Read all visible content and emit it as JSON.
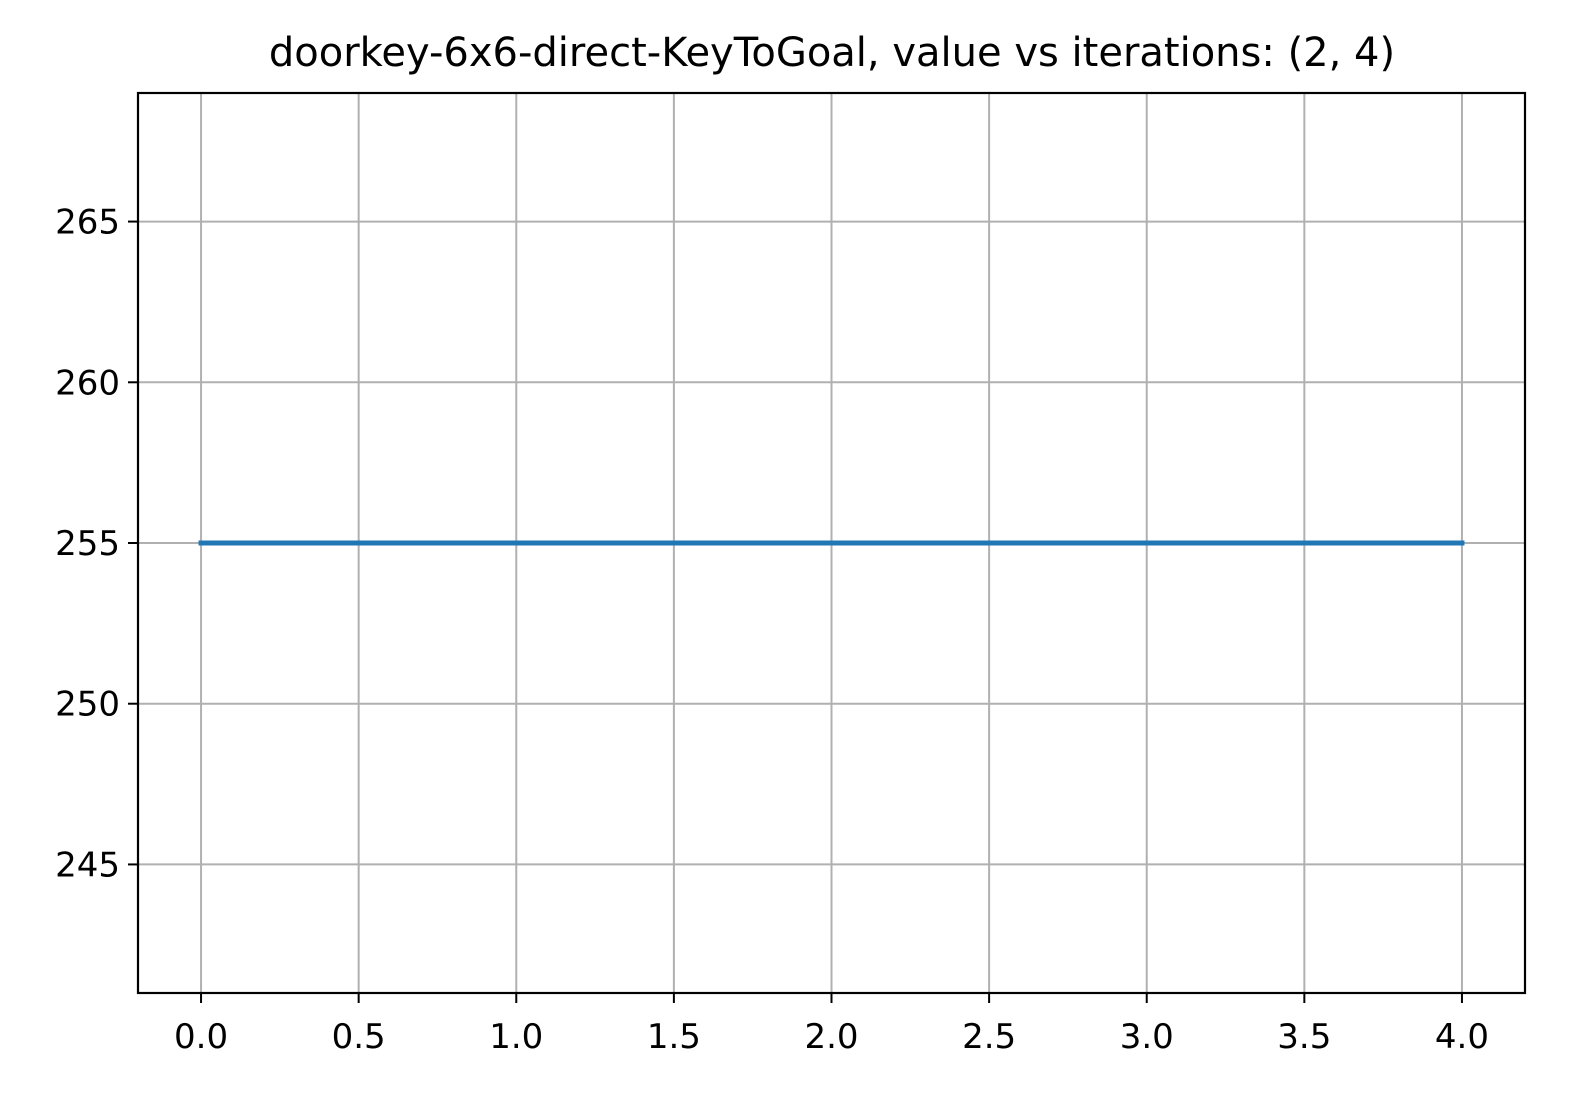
{
  "chart_data": {
    "type": "line",
    "title": "doorkey-6x6-direct-KeyToGoal, value vs iterations: (2, 4)",
    "xlabel": "",
    "ylabel": "",
    "xlim": [
      -0.2,
      4.2
    ],
    "ylim": [
      241,
      269
    ],
    "xticks": [
      0.0,
      0.5,
      1.0,
      1.5,
      2.0,
      2.5,
      3.0,
      3.5,
      4.0
    ],
    "xtick_labels": [
      "0.0",
      "0.5",
      "1.0",
      "1.5",
      "2.0",
      "2.5",
      "3.0",
      "3.5",
      "4.0"
    ],
    "yticks": [
      245,
      250,
      255,
      260,
      265
    ],
    "ytick_labels": [
      "245",
      "250",
      "255",
      "260",
      "265"
    ],
    "grid": true,
    "legend": "none",
    "series": [
      {
        "x": [
          0,
          1,
          2,
          3,
          4
        ],
        "y": [
          255,
          255,
          255,
          255,
          255
        ],
        "color": "#1f77b4"
      }
    ],
    "colors": {
      "grid": "#b0b0b0",
      "axes": "#000000",
      "series": "#1f77b4"
    }
  }
}
